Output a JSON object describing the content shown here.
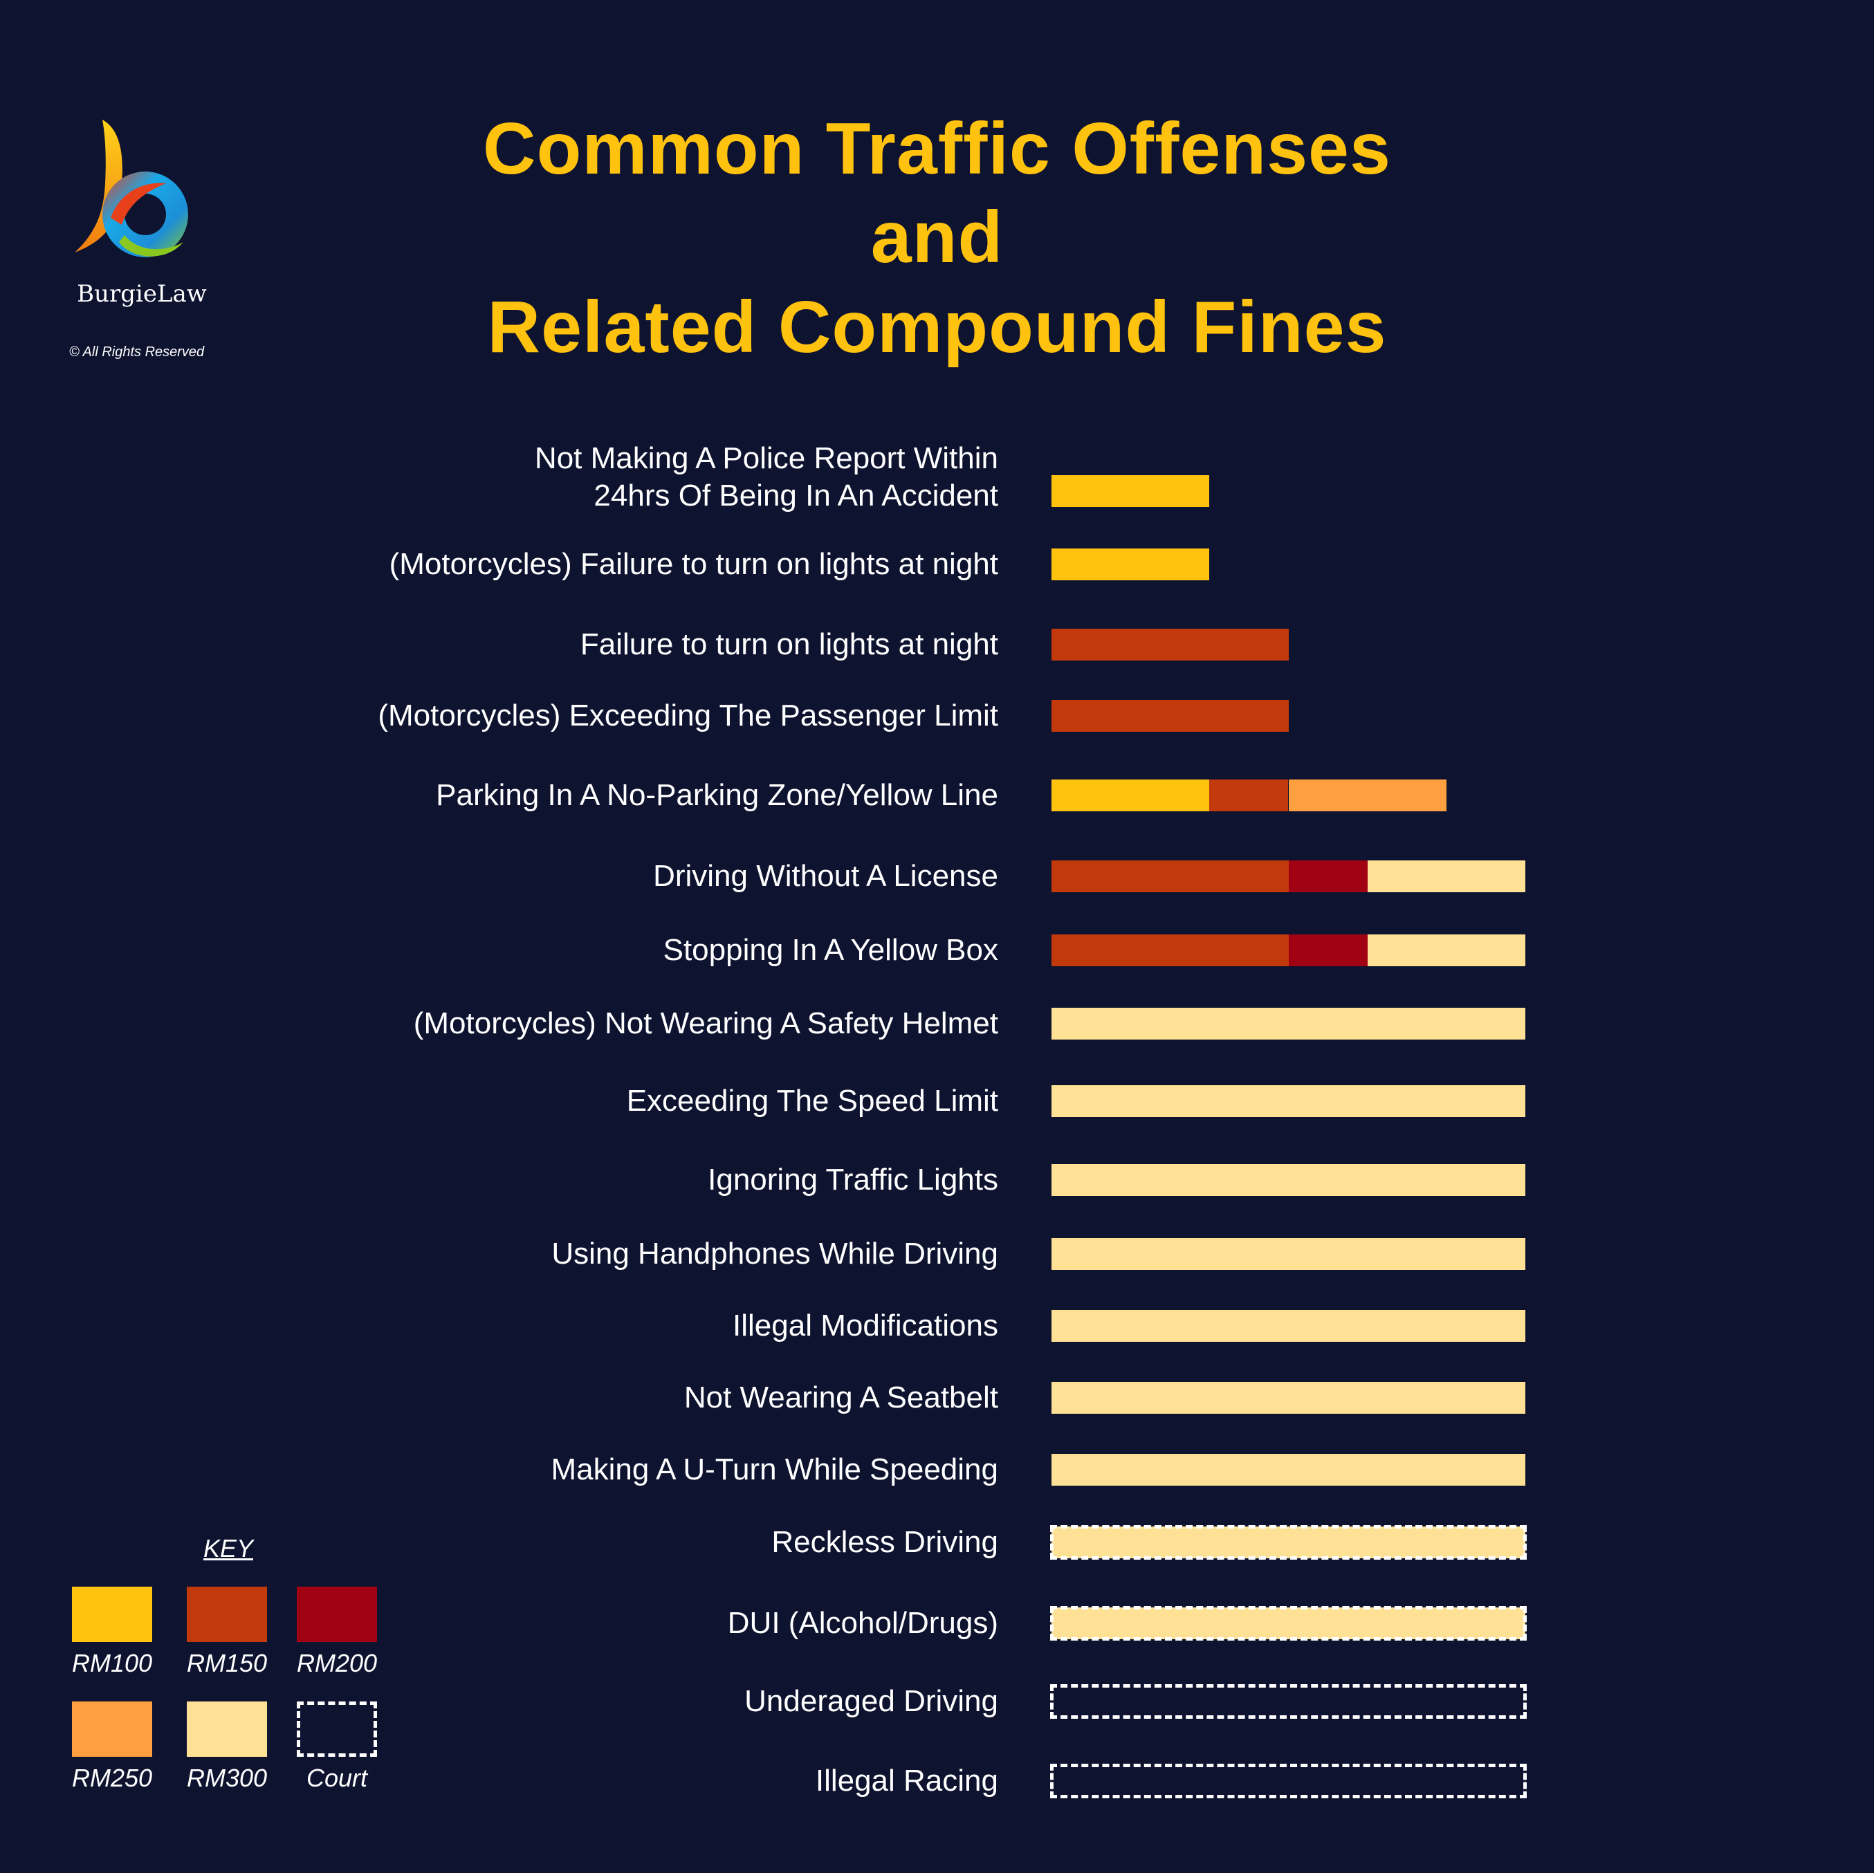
{
  "brand": {
    "name": "BurgieLaw",
    "copyright": "©  All Rights Reserved"
  },
  "title": {
    "line1": "Common Traffic Offenses",
    "line2": "and",
    "line3": "Related Compound Fines"
  },
  "colors": {
    "background": "#0e1330",
    "title": "#ffc20e",
    "RM100": "#ffc20e",
    "RM150": "#c2390c",
    "RM200": "#a00214",
    "RM250": "#ff9f40",
    "RM300": "#ffe196",
    "Court": "#ffffff"
  },
  "chart_data": {
    "type": "bar",
    "orientation": "horizontal",
    "stacked": true,
    "legend": {
      "title": "KEY",
      "placement": "bottom-left",
      "entries": [
        {
          "key": "RM100",
          "label": "RM100",
          "style": "fill"
        },
        {
          "key": "RM150",
          "label": "RM150",
          "style": "fill"
        },
        {
          "key": "RM200",
          "label": "RM200",
          "style": "fill"
        },
        {
          "key": "RM250",
          "label": "RM250",
          "style": "fill"
        },
        {
          "key": "RM300",
          "label": "RM300",
          "style": "fill"
        },
        {
          "key": "Court",
          "label": "Court",
          "style": "dashed-outline"
        }
      ]
    },
    "categories": [
      "Not Making A Police Report Within\n24hrs Of Being In An Accident",
      "(Motorcycles) Failure to turn on lights at night",
      "Failure to turn on lights at night",
      "(Motorcycles) Exceeding The Passenger Limit",
      "Parking In A No-Parking Zone/Yellow Line",
      "Driving Without A License",
      "Stopping In A Yellow Box",
      "(Motorcycles) Not Wearing A Safety Helmet",
      "Exceeding The Speed Limit",
      "Ignoring Traffic Lights",
      "Using Handphones While Driving",
      "Illegal Modifications",
      "Not Wearing A Seatbelt",
      "Making A U-Turn While Speeding",
      "Reckless Driving",
      "DUI (Alcohol/Drugs)",
      "Underaged Driving",
      "Illegal Racing"
    ],
    "rows": [
      {
        "max_fine": 100,
        "segments": [
          [
            "RM100",
            0,
            100
          ]
        ],
        "court": false
      },
      {
        "max_fine": 100,
        "segments": [
          [
            "RM100",
            0,
            100
          ]
        ],
        "court": false
      },
      {
        "max_fine": 150,
        "segments": [
          [
            "RM150",
            0,
            150
          ]
        ],
        "court": false
      },
      {
        "max_fine": 150,
        "segments": [
          [
            "RM150",
            0,
            150
          ]
        ],
        "court": false
      },
      {
        "max_fine": 250,
        "segments": [
          [
            "RM100",
            0,
            100
          ],
          [
            "RM150",
            100,
            150
          ],
          [
            "RM250",
            150,
            250
          ]
        ],
        "court": false
      },
      {
        "max_fine": 300,
        "segments": [
          [
            "RM150",
            0,
            150
          ],
          [
            "RM200",
            150,
            200
          ],
          [
            "RM300",
            200,
            300
          ]
        ],
        "court": false
      },
      {
        "max_fine": 300,
        "segments": [
          [
            "RM150",
            0,
            150
          ],
          [
            "RM200",
            150,
            200
          ],
          [
            "RM300",
            200,
            300
          ]
        ],
        "court": false
      },
      {
        "max_fine": 300,
        "segments": [
          [
            "RM300",
            0,
            300
          ]
        ],
        "court": false
      },
      {
        "max_fine": 300,
        "segments": [
          [
            "RM300",
            0,
            300
          ]
        ],
        "court": false
      },
      {
        "max_fine": 300,
        "segments": [
          [
            "RM300",
            0,
            300
          ]
        ],
        "court": false
      },
      {
        "max_fine": 300,
        "segments": [
          [
            "RM300",
            0,
            300
          ]
        ],
        "court": false
      },
      {
        "max_fine": 300,
        "segments": [
          [
            "RM300",
            0,
            300
          ]
        ],
        "court": false
      },
      {
        "max_fine": 300,
        "segments": [
          [
            "RM300",
            0,
            300
          ]
        ],
        "court": false
      },
      {
        "max_fine": 300,
        "segments": [
          [
            "RM300",
            0,
            300
          ]
        ],
        "court": false
      },
      {
        "max_fine": 300,
        "segments": [
          [
            "RM300",
            0,
            300
          ]
        ],
        "court": true
      },
      {
        "max_fine": 300,
        "segments": [
          [
            "RM300",
            0,
            300
          ]
        ],
        "court": true
      },
      {
        "max_fine": 300,
        "segments": [],
        "court": true
      },
      {
        "max_fine": 300,
        "segments": [],
        "court": true
      }
    ],
    "xlim": [
      0,
      300
    ],
    "xlabel": "",
    "ylabel": "",
    "grid": false
  }
}
